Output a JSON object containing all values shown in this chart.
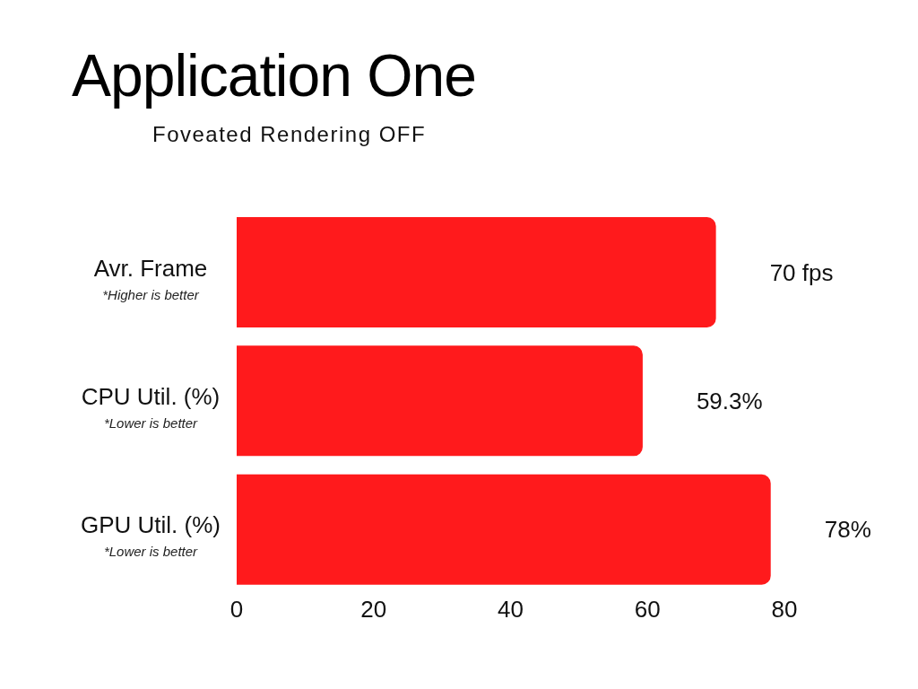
{
  "chart_data": {
    "type": "bar",
    "orientation": "horizontal",
    "title": "Application One",
    "subtitle": "Foveated Rendering OFF",
    "categories": [
      "Avr. Frame",
      "CPU Util. (%)",
      "GPU Util. (%)"
    ],
    "values": [
      70,
      59.3,
      78
    ],
    "value_labels": [
      "70 fps",
      "59.3%",
      "78%"
    ],
    "color": "#ff1a1c",
    "annotations": [
      "*Higher is better",
      "*Lower is better",
      "*Lower is better"
    ],
    "xlim": [
      0,
      80
    ],
    "xticks": [
      0,
      20,
      40,
      60,
      80
    ],
    "grid": false
  }
}
